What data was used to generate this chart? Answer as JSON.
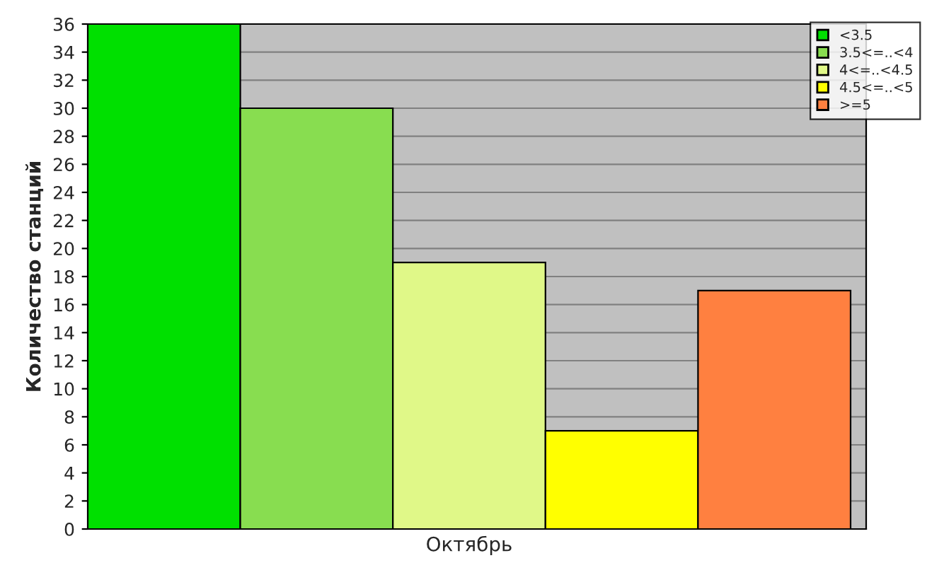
{
  "chart_data": {
    "type": "bar",
    "ylabel": "Количество станций",
    "categories": [
      "Октябрь"
    ],
    "series": [
      {
        "name": "<3.5",
        "color": "#00e000",
        "values": [
          36
        ]
      },
      {
        "name": "3.5<=..<4",
        "color": "#88dd50",
        "values": [
          30
        ]
      },
      {
        "name": "4<=..<4.5",
        "color": "#e0f888",
        "values": [
          19
        ]
      },
      {
        "name": "4.5<=..<5",
        "color": "#ffff00",
        "values": [
          7
        ]
      },
      {
        "name": ">=5",
        "color": "#ff8040",
        "values": [
          17
        ]
      }
    ],
    "ylim": [
      0,
      36
    ],
    "yticks": [
      0,
      2,
      4,
      6,
      8,
      10,
      12,
      14,
      16,
      18,
      20,
      22,
      24,
      26,
      28,
      30,
      32,
      34,
      36
    ],
    "grid": "y",
    "legend": "top right"
  }
}
